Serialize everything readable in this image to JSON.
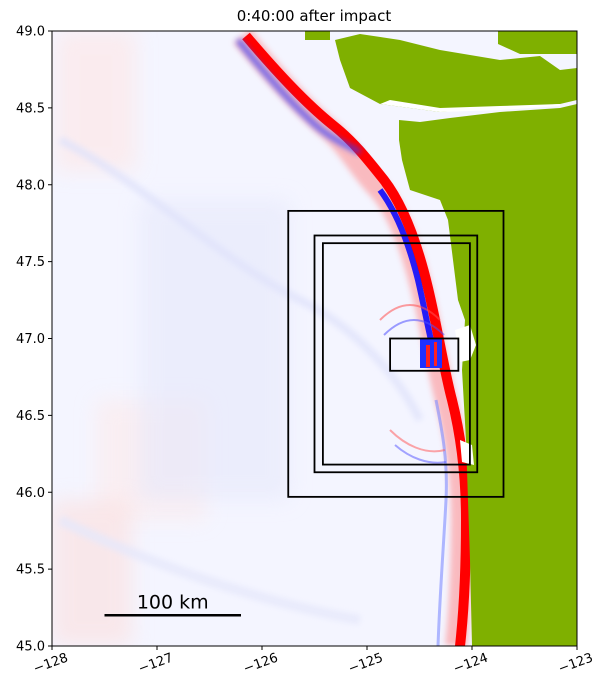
{
  "chart_data": {
    "type": "heatmap",
    "title": "0:40:00 after impact",
    "xlabel": "",
    "ylabel": "",
    "xlim": [
      -128,
      -123
    ],
    "ylim": [
      45.0,
      49.0
    ],
    "x_ticks": [
      -128,
      -127,
      -126,
      -125,
      -124,
      -123
    ],
    "x_tick_labels": [
      "−128",
      "−127",
      "−126",
      "−125",
      "−124",
      "−123"
    ],
    "y_ticks": [
      45.0,
      45.5,
      46.0,
      46.5,
      47.0,
      47.5,
      48.0,
      48.5,
      49.0
    ],
    "y_tick_labels": [
      "45.0",
      "45.5",
      "46.0",
      "46.5",
      "47.0",
      "47.5",
      "48.0",
      "48.5",
      "49.0"
    ],
    "grid": false,
    "colors": {
      "land": "#7fb000",
      "positive": "#ff0000",
      "negative": "#0000ff",
      "neutral": "#ffffff"
    },
    "regions": [
      {
        "lon": [
          -125.75,
          -123.7
        ],
        "lat": [
          45.97,
          47.83
        ]
      },
      {
        "lon": [
          -125.5,
          -123.95
        ],
        "lat": [
          46.13,
          47.67
        ]
      },
      {
        "lon": [
          -125.42,
          -124.02
        ],
        "lat": [
          46.18,
          47.62
        ]
      },
      {
        "lon": [
          -124.78,
          -124.13
        ],
        "lat": [
          46.79,
          47.0
        ]
      }
    ],
    "scale_bar": {
      "label": "100 km",
      "lon": [
        -127.5,
        -126.2
      ],
      "lat": 45.2
    }
  }
}
